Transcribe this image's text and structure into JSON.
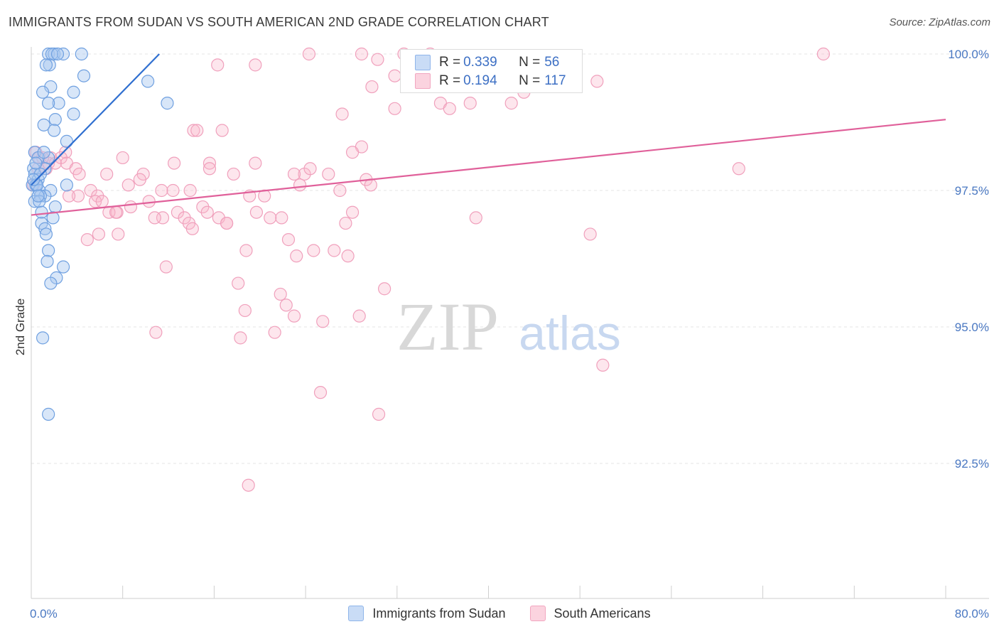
{
  "header": {
    "title": "IMMIGRANTS FROM SUDAN VS SOUTH AMERICAN 2ND GRADE CORRELATION CHART",
    "source": "Source: ZipAtlas.com"
  },
  "watermark": {
    "zip": "ZIP",
    "atlas": "atlas"
  },
  "legend_top": {
    "rows": [
      {
        "r_label": "R = ",
        "r_value": "0.339",
        "n_label": "N = ",
        "n_value": "56",
        "color": "#a8c8f0"
      },
      {
        "r_label": "R = ",
        "r_value": "0.194",
        "n_label": "N = ",
        "n_value": "117",
        "color": "#f8b8cc"
      }
    ]
  },
  "legend_bottom": {
    "items": [
      {
        "label": "Immigrants from Sudan",
        "color": "#a8c8f0"
      },
      {
        "label": "South Americans",
        "color": "#f8b8cc"
      }
    ]
  },
  "chart_data": {
    "type": "scatter",
    "title": "IMMIGRANTS FROM SUDAN VS SOUTH AMERICAN 2ND GRADE CORRELATION CHART",
    "xlabel": "",
    "ylabel": "2nd Grade",
    "xlim": [
      0,
      80
    ],
    "ylim": [
      90.2,
      100.2
    ],
    "x_tick_labels": [
      "0.0%",
      "80.0%"
    ],
    "y_ticks": [
      92.5,
      95.0,
      97.5,
      100.0
    ],
    "y_tick_labels": [
      "92.5%",
      "95.0%",
      "97.5%",
      "100.0%"
    ],
    "grid": true,
    "legend_placement": "top-center",
    "series": [
      {
        "name": "Immigrants from Sudan",
        "color": "#6fa0e0",
        "trend": {
          "x": [
            0,
            11.2
          ],
          "y": [
            97.6,
            100.0
          ],
          "color": "#2f6fd0"
        },
        "points": [
          [
            1.5,
            100.0
          ],
          [
            2.0,
            100.0
          ],
          [
            2.8,
            100.0
          ],
          [
            1.8,
            100.0
          ],
          [
            4.4,
            100.0
          ],
          [
            2.3,
            100.0
          ],
          [
            1.6,
            99.8
          ],
          [
            1.3,
            99.8
          ],
          [
            4.6,
            99.6
          ],
          [
            10.2,
            99.5
          ],
          [
            1.7,
            99.4
          ],
          [
            1.0,
            99.3
          ],
          [
            3.7,
            99.3
          ],
          [
            2.4,
            99.1
          ],
          [
            1.5,
            99.1
          ],
          [
            11.9,
            99.1
          ],
          [
            3.7,
            98.9
          ],
          [
            2.1,
            98.8
          ],
          [
            1.1,
            98.7
          ],
          [
            2.0,
            98.6
          ],
          [
            3.1,
            98.4
          ],
          [
            0.3,
            98.2
          ],
          [
            1.5,
            98.1
          ],
          [
            0.6,
            98.1
          ],
          [
            1.2,
            97.9
          ],
          [
            0.2,
            97.9
          ],
          [
            0.3,
            97.8
          ],
          [
            0.6,
            97.7
          ],
          [
            0.1,
            97.6
          ],
          [
            0.4,
            97.6
          ],
          [
            3.1,
            97.6
          ],
          [
            1.7,
            97.5
          ],
          [
            0.7,
            97.5
          ],
          [
            1.2,
            97.4
          ],
          [
            0.8,
            97.4
          ],
          [
            0.3,
            97.3
          ],
          [
            2.1,
            97.2
          ],
          [
            0.7,
            97.3
          ],
          [
            0.9,
            97.1
          ],
          [
            1.9,
            97.0
          ],
          [
            0.9,
            96.9
          ],
          [
            1.2,
            96.8
          ],
          [
            1.3,
            96.7
          ],
          [
            1.5,
            96.4
          ],
          [
            1.4,
            96.2
          ],
          [
            2.8,
            96.1
          ],
          [
            2.2,
            95.9
          ],
          [
            1.7,
            95.8
          ],
          [
            1.0,
            94.8
          ],
          [
            1.5,
            93.4
          ],
          [
            0.4,
            98.0
          ],
          [
            0.5,
            97.6
          ],
          [
            0.8,
            97.8
          ],
          [
            1.1,
            98.2
          ],
          [
            0.2,
            97.7
          ],
          [
            0.6,
            97.4
          ]
        ]
      },
      {
        "name": "South Americans",
        "color": "#f090b0",
        "trend": {
          "x": [
            0,
            80
          ],
          "y": [
            97.05,
            98.8
          ],
          "color": "#e0609a"
        },
        "points": [
          [
            24.3,
            100.0
          ],
          [
            28.9,
            100.0
          ],
          [
            32.6,
            100.0
          ],
          [
            69.3,
            100.0
          ],
          [
            34.9,
            100.0
          ],
          [
            40.6,
            99.9
          ],
          [
            30.3,
            99.9
          ],
          [
            41.3,
            99.9
          ],
          [
            19.6,
            99.8
          ],
          [
            16.3,
            99.8
          ],
          [
            31.8,
            99.6
          ],
          [
            49.5,
            99.5
          ],
          [
            29.8,
            99.4
          ],
          [
            35.8,
            99.1
          ],
          [
            42.0,
            99.1
          ],
          [
            38.4,
            99.1
          ],
          [
            43.1,
            99.3
          ],
          [
            31.8,
            99.0
          ],
          [
            36.6,
            99.0
          ],
          [
            27.2,
            98.9
          ],
          [
            14.2,
            98.6
          ],
          [
            14.5,
            98.6
          ],
          [
            16.7,
            98.6
          ],
          [
            28.9,
            98.3
          ],
          [
            28.1,
            98.2
          ],
          [
            3.0,
            98.2
          ],
          [
            1.7,
            98.1
          ],
          [
            2.6,
            98.1
          ],
          [
            8.0,
            98.1
          ],
          [
            15.6,
            98.0
          ],
          [
            0.4,
            98.2
          ],
          [
            3.1,
            98.0
          ],
          [
            12.5,
            98.0
          ],
          [
            19.6,
            98.0
          ],
          [
            61.9,
            97.9
          ],
          [
            0.6,
            97.9
          ],
          [
            3.9,
            97.9
          ],
          [
            4.2,
            97.8
          ],
          [
            1.3,
            97.9
          ],
          [
            15.6,
            97.9
          ],
          [
            17.7,
            97.8
          ],
          [
            23.9,
            97.8
          ],
          [
            9.8,
            97.8
          ],
          [
            6.6,
            97.8
          ],
          [
            0.2,
            97.6
          ],
          [
            24.4,
            97.9
          ],
          [
            26.0,
            97.8
          ],
          [
            23.0,
            97.8
          ],
          [
            9.5,
            97.7
          ],
          [
            29.3,
            97.7
          ],
          [
            23.5,
            97.6
          ],
          [
            29.7,
            97.6
          ],
          [
            8.5,
            97.6
          ],
          [
            27.0,
            97.5
          ],
          [
            12.4,
            97.5
          ],
          [
            11.4,
            97.5
          ],
          [
            13.9,
            97.5
          ],
          [
            5.2,
            97.5
          ],
          [
            5.8,
            97.4
          ],
          [
            4.1,
            97.4
          ],
          [
            3.3,
            97.4
          ],
          [
            19.1,
            97.4
          ],
          [
            20.4,
            97.4
          ],
          [
            5.6,
            97.3
          ],
          [
            6.2,
            97.3
          ],
          [
            10.3,
            97.3
          ],
          [
            15.0,
            97.2
          ],
          [
            8.7,
            97.2
          ],
          [
            15.4,
            97.1
          ],
          [
            7.5,
            97.1
          ],
          [
            6.8,
            97.1
          ],
          [
            19.7,
            97.1
          ],
          [
            12.8,
            97.1
          ],
          [
            28.1,
            97.1
          ],
          [
            7.4,
            97.1
          ],
          [
            11.5,
            97.0
          ],
          [
            10.8,
            97.0
          ],
          [
            16.4,
            97.0
          ],
          [
            13.4,
            97.0
          ],
          [
            20.9,
            97.0
          ],
          [
            21.9,
            97.0
          ],
          [
            38.9,
            97.0
          ],
          [
            17.1,
            96.9
          ],
          [
            13.8,
            96.9
          ],
          [
            17.1,
            96.9
          ],
          [
            27.5,
            96.9
          ],
          [
            14.1,
            96.8
          ],
          [
            5.9,
            96.7
          ],
          [
            7.6,
            96.7
          ],
          [
            48.9,
            96.7
          ],
          [
            4.9,
            96.6
          ],
          [
            22.5,
            96.6
          ],
          [
            18.8,
            96.4
          ],
          [
            24.7,
            96.4
          ],
          [
            26.5,
            96.4
          ],
          [
            23.2,
            96.3
          ],
          [
            27.7,
            96.3
          ],
          [
            11.8,
            96.1
          ],
          [
            18.1,
            95.8
          ],
          [
            30.9,
            95.7
          ],
          [
            21.8,
            95.6
          ],
          [
            22.3,
            95.4
          ],
          [
            18.7,
            95.3
          ],
          [
            23.0,
            95.2
          ],
          [
            28.7,
            95.2
          ],
          [
            25.5,
            95.1
          ],
          [
            21.3,
            94.9
          ],
          [
            10.9,
            94.9
          ],
          [
            18.3,
            94.8
          ],
          [
            50.0,
            94.3
          ],
          [
            25.3,
            93.8
          ],
          [
            30.4,
            93.4
          ],
          [
            19.0,
            92.1
          ],
          [
            0.7,
            98.1
          ],
          [
            1.5,
            98.0
          ],
          [
            2.1,
            98.0
          ],
          [
            1.0,
            98.1
          ]
        ]
      }
    ]
  }
}
